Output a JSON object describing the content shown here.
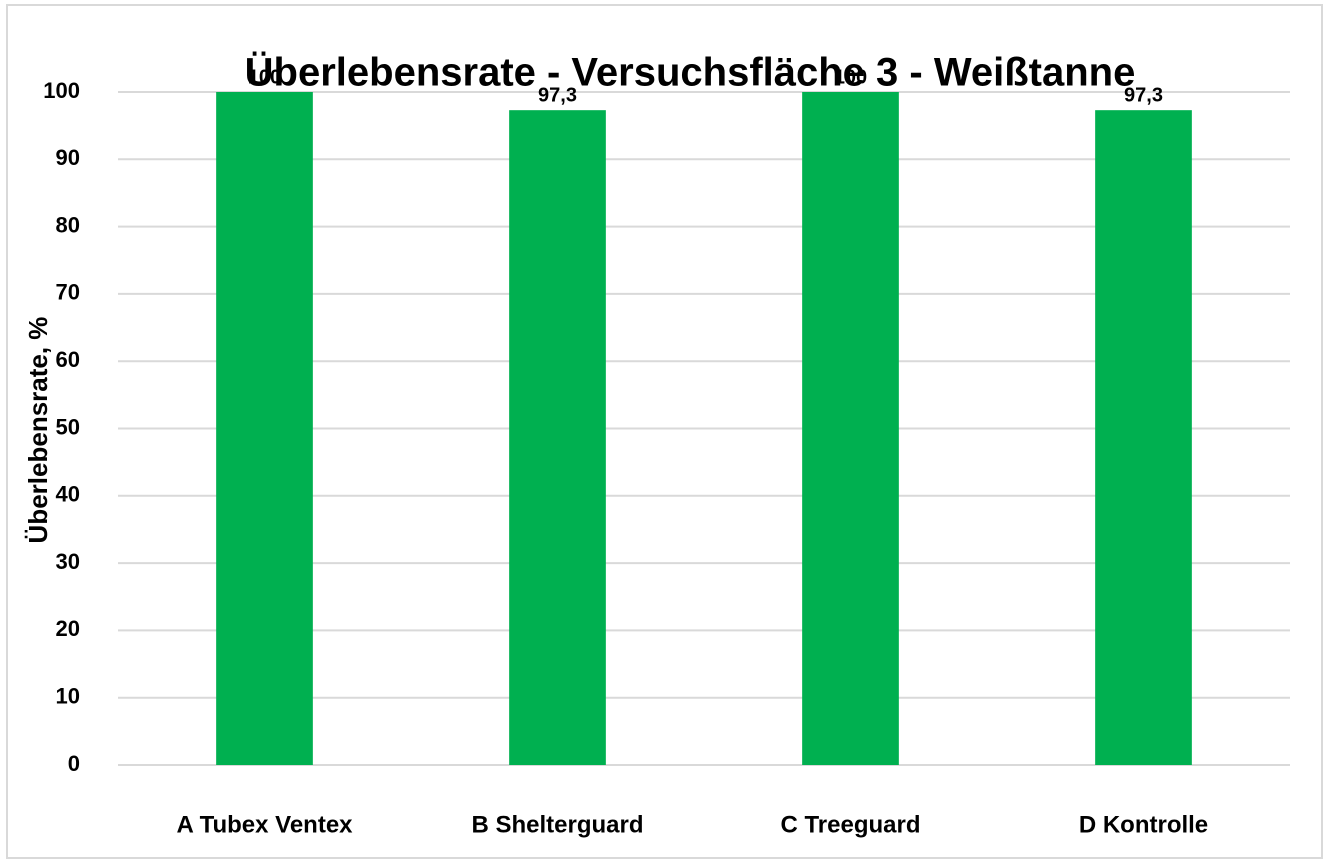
{
  "chart_data": {
    "type": "bar",
    "title": "Überlebensrate - Versuchsfläche 3 - Weißtanne",
    "y_label": "Überlebensrate, %",
    "categories": [
      "A Tubex Ventex",
      "B Shelterguard",
      "C Treeguard",
      "D Kontrolle"
    ],
    "values": [
      100,
      97.3,
      100,
      97.3
    ],
    "value_labels": [
      "100",
      "97,3",
      "100",
      "97,3"
    ],
    "color": "#00b050",
    "ylim": [
      0,
      100
    ],
    "yticks": [
      0,
      10,
      20,
      30,
      40,
      50,
      60,
      70,
      80,
      90,
      100
    ],
    "grid": true
  }
}
